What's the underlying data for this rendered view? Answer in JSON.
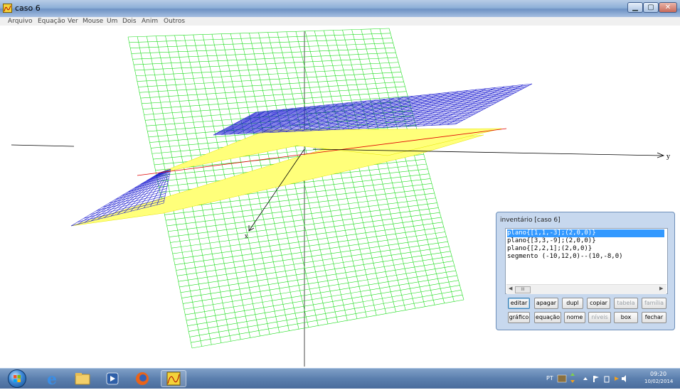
{
  "window": {
    "title": "caso 6",
    "icon": "function-plot-icon",
    "controls": [
      "minimize-icon",
      "maximize-icon",
      "close-icon"
    ]
  },
  "menu": [
    "Arquivo",
    "Equação",
    "Ver",
    "Mouse",
    "Um",
    "Dois",
    "Anim",
    "Outros"
  ],
  "canvas": {
    "axis_labels": {
      "x": "x",
      "y": "y"
    },
    "colors": {
      "grid_green": "#00e000",
      "plane_blue": "#1a1ad0",
      "plane_yellow": "#ffff66",
      "segment_red": "#e00000",
      "axis": "#000000"
    }
  },
  "inventory": {
    "title": "inventário [caso 6]",
    "items": [
      "plano{[1,1,-3];(2,0,0)}",
      "plano{[3,3,-9];(2,0,0)}",
      "plano{[2,2,1];(2,0,0)}",
      "segmento (-10,12,0)--(10,-8,0)"
    ],
    "selected_index": 0,
    "buttons_row1": [
      {
        "label": "editar",
        "enabled": true
      },
      {
        "label": "apagar",
        "enabled": true
      },
      {
        "label": "dupl",
        "enabled": true
      },
      {
        "label": "copiar",
        "enabled": true
      },
      {
        "label": "tabela",
        "enabled": false
      },
      {
        "label": "família",
        "enabled": false
      }
    ],
    "buttons_row2": [
      {
        "label": "gráfico",
        "enabled": true
      },
      {
        "label": "equação",
        "enabled": true
      },
      {
        "label": "nome",
        "enabled": true
      },
      {
        "label": "níveis",
        "enabled": false
      },
      {
        "label": "box",
        "enabled": true
      },
      {
        "label": "fechar",
        "enabled": true
      }
    ],
    "scroll_thumb": "III"
  },
  "taskbar": {
    "apps": [
      "windows-start-icon",
      "internet-explorer-icon",
      "file-explorer-icon",
      "media-player-icon",
      "firefox-icon",
      "winplot-icon"
    ],
    "language": "PT",
    "time": "09:20",
    "date": "10/02/2014"
  }
}
